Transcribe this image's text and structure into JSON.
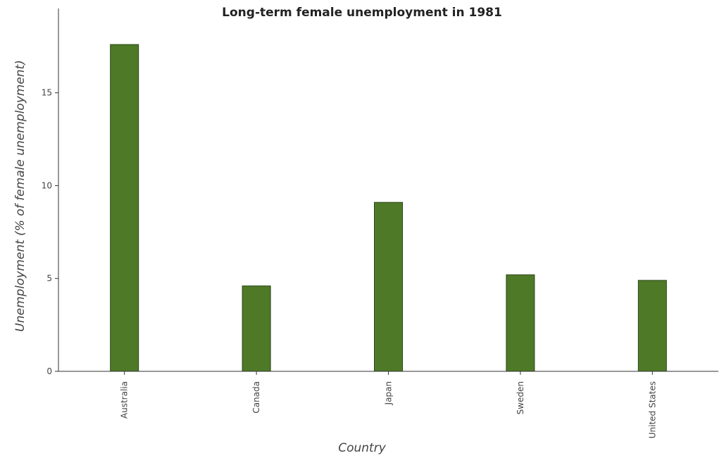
{
  "chart_data": {
    "type": "bar",
    "title": "Long-term female unemployment in 1981",
    "xlabel": "Country",
    "ylabel": "Unemployment (% of female unemployment)",
    "categories": [
      "Australia",
      "Canada",
      "Japan",
      "Sweden",
      "United States"
    ],
    "values": [
      17.6,
      4.6,
      9.1,
      5.2,
      4.9
    ],
    "ylim": [
      0,
      18.48
    ],
    "yticks": [
      0,
      5,
      10,
      15
    ],
    "grid": false,
    "legend": "none",
    "bar_color": "#4e7a27",
    "bar_stroke": "#2b4418"
  }
}
